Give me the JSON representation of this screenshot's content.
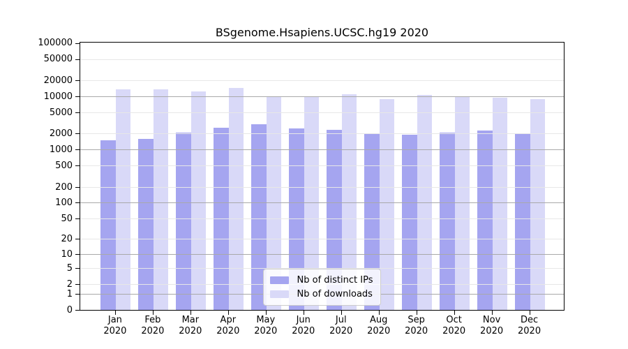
{
  "title": "BSgenome.Hsapiens.UCSC.hg19 2020",
  "chart_data": {
    "type": "bar",
    "title": "BSgenome.Hsapiens.UCSC.hg19 2020",
    "months": [
      "Jan",
      "Feb",
      "Mar",
      "Apr",
      "May",
      "Jun",
      "Jul",
      "Aug",
      "Sep",
      "Oct",
      "Nov",
      "Dec"
    ],
    "year": "2020",
    "series": [
      {
        "name": "Nb of distinct IPs",
        "color": "#a5a5f0",
        "values": [
          1500,
          1600,
          2100,
          2650,
          3050,
          2570,
          2400,
          2050,
          1960,
          2130,
          2330,
          2050
        ]
      },
      {
        "name": "Nb of downloads",
        "color": "#d9d9f8",
        "values": [
          13800,
          13600,
          12600,
          14700,
          9900,
          9950,
          11200,
          9000,
          10700,
          10100,
          9600,
          8900
        ]
      }
    ],
    "y_ticks": [
      0,
      1,
      2,
      5,
      10,
      20,
      50,
      100,
      200,
      500,
      1000,
      2000,
      5000,
      10000,
      20000,
      50000,
      100000
    ],
    "y_scale": "log10(1+v)",
    "ylim": [
      0,
      100000
    ],
    "grid": true,
    "legend_position": "lower center",
    "legend_entries": [
      "Nb of distinct IPs",
      "Nb of downloads"
    ]
  },
  "colors": {
    "bar_distinct_ips": "#a5a5f0",
    "bar_downloads": "#d9d9f8",
    "grid_minor": "#e7e7e7",
    "grid_major": "#a9a9a9",
    "axis": "#000000",
    "legend_border": "#cccccc"
  }
}
